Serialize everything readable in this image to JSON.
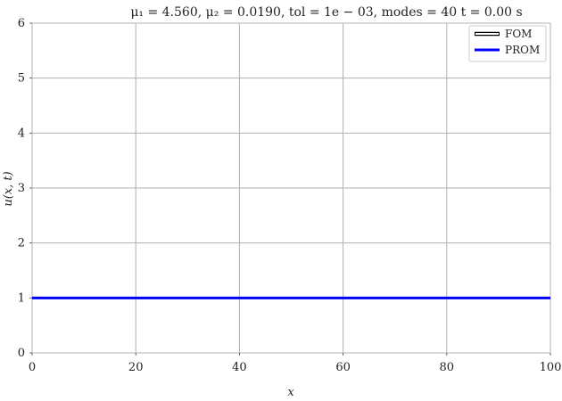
{
  "chart_data": {
    "type": "line",
    "title": "μ₁ = 4.560,  μ₂ = 0.0190,  tol = 1e − 03,  modes = 40    t = 0.00 s",
    "xlabel": "x",
    "ylabel": "u(x, t)",
    "xlim": [
      0,
      100
    ],
    "ylim": [
      0,
      6
    ],
    "xticks": [
      0,
      20,
      40,
      60,
      80,
      100
    ],
    "yticks": [
      0,
      1,
      2,
      3,
      4,
      5,
      6
    ],
    "grid": true,
    "legend_position": "top-right",
    "series": [
      {
        "name": "FOM",
        "color": "#000000",
        "x": [
          0,
          100
        ],
        "y": [
          1,
          1
        ]
      },
      {
        "name": "PROM",
        "color": "#0000ff",
        "x": [
          0,
          100
        ],
        "y": [
          1,
          1
        ]
      }
    ]
  }
}
